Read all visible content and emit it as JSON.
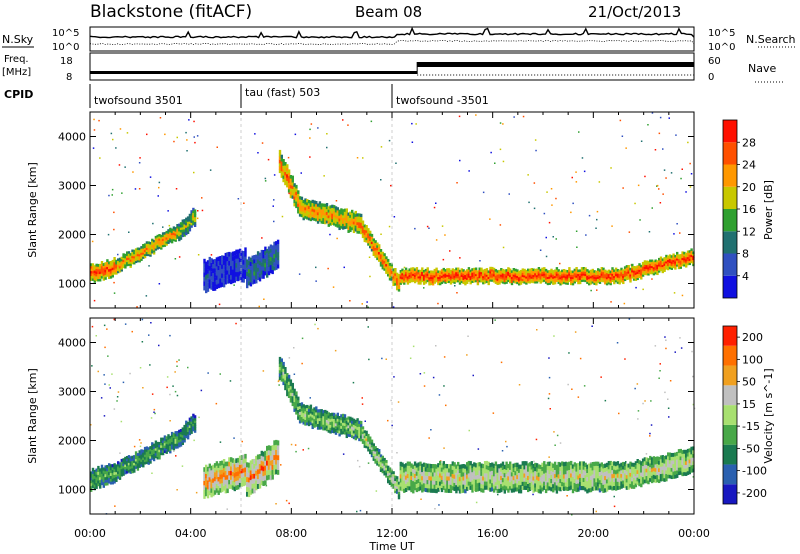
{
  "header": {
    "title": "Blackstone (fitACF)",
    "beam": "Beam 08",
    "date": "21/Oct/2013"
  },
  "top_panel": {
    "left_label": "N.Sky",
    "right_label": "N.Search",
    "left_ticks": [
      "10^5",
      "10^0"
    ],
    "right_ticks": [
      "10^5",
      "10^0"
    ]
  },
  "freq_panel": {
    "left_label_1": "Freq.",
    "left_label_2": "[MHz]",
    "right_label": "Nave",
    "left_ticks": [
      "18",
      "8"
    ],
    "right_ticks": [
      "60",
      "0"
    ],
    "cpid_label": "CPID"
  },
  "cpid_segments": [
    {
      "name": "twofsound 3501",
      "start": 0.0,
      "end": 6.0
    },
    {
      "name": "tau (fast) 503",
      "start": 6.0,
      "end": 12.0
    },
    {
      "name": "twofsound -3501",
      "start": 12.0,
      "end": 24.0
    }
  ],
  "chart_data": [
    {
      "type": "heatmap",
      "title": "",
      "xlabel": "Time UT",
      "ylabel": "Slant Range [km]",
      "xlim": [
        0,
        24
      ],
      "ylim": [
        500,
        4500
      ],
      "x_ticks": [
        "00:00",
        "04:00",
        "08:00",
        "12:00",
        "16:00",
        "20:00",
        "00:00"
      ],
      "y_ticks": [
        "1000",
        "2000",
        "3000",
        "4000"
      ],
      "colorbar": {
        "label": "Power [dB]",
        "ticks": [
          "4",
          "8",
          "12",
          "16",
          "20",
          "24",
          "28"
        ],
        "colors": [
          "#1010e0",
          "#3050c0",
          "#207070",
          "#30a030",
          "#c8c800",
          "#ff9800",
          "#ff5000",
          "#ff1000"
        ]
      },
      "bands": [
        {
          "t0": 0.0,
          "t1": 1.0,
          "r0": 1200,
          "r1": 1350,
          "thick": 300,
          "level": 0.9
        },
        {
          "t0": 1.0,
          "t1": 3.5,
          "r0": 1350,
          "r1": 2050,
          "thick": 250,
          "level": 0.75
        },
        {
          "t0": 3.5,
          "t1": 4.2,
          "r0": 2050,
          "r1": 2400,
          "thick": 300,
          "level": 0.55
        },
        {
          "t0": 4.5,
          "t1": 6.2,
          "r0": 1150,
          "r1": 1400,
          "thick": 550,
          "level": 0.15
        },
        {
          "t0": 6.2,
          "t1": 7.5,
          "r0": 1200,
          "r1": 1600,
          "thick": 500,
          "level": 0.3
        },
        {
          "t0": 7.5,
          "t1": 8.3,
          "r0": 3500,
          "r1": 2600,
          "thick": 400,
          "level": 0.8
        },
        {
          "t0": 8.3,
          "t1": 10.8,
          "r0": 2550,
          "r1": 2200,
          "thick": 350,
          "level": 0.75
        },
        {
          "t0": 10.8,
          "t1": 12.3,
          "r0": 2100,
          "r1": 950,
          "thick": 300,
          "level": 0.85
        },
        {
          "t0": 12.3,
          "t1": 21.0,
          "r0": 1150,
          "r1": 1150,
          "thick": 250,
          "level": 0.92
        },
        {
          "t0": 21.0,
          "t1": 24.0,
          "r0": 1150,
          "r1": 1550,
          "thick": 250,
          "level": 0.9
        }
      ]
    },
    {
      "type": "heatmap",
      "title": "",
      "xlabel": "Time UT",
      "ylabel": "Slant Range [km]",
      "xlim": [
        0,
        24
      ],
      "ylim": [
        500,
        4500
      ],
      "x_ticks": [
        "00:00",
        "04:00",
        "08:00",
        "12:00",
        "16:00",
        "20:00",
        "00:00"
      ],
      "y_ticks": [
        "1000",
        "2000",
        "3000",
        "4000"
      ],
      "colorbar": {
        "label": "Velocity [m s^-1]",
        "ticks": [
          "200",
          "100",
          "50",
          "15",
          "-15",
          "-50",
          "-100",
          "-200"
        ],
        "colors": [
          "#1818c0",
          "#2a60b0",
          "#1a7a50",
          "#48a848",
          "#a8e070",
          "#c0c0c0",
          "#f0a020",
          "#ff7000",
          "#ff2000"
        ]
      },
      "bands": [
        {
          "t0": 0.0,
          "t1": 1.0,
          "r0": 1200,
          "r1": 1350,
          "thick": 350,
          "level": 0.4
        },
        {
          "t0": 1.0,
          "t1": 3.5,
          "r0": 1350,
          "r1": 2050,
          "thick": 300,
          "level": 0.4
        },
        {
          "t0": 3.5,
          "t1": 4.2,
          "r0": 2050,
          "r1": 2400,
          "thick": 300,
          "level": 0.35
        },
        {
          "t0": 4.5,
          "t1": 6.2,
          "r0": 1150,
          "r1": 1400,
          "thick": 550,
          "level": 0.8
        },
        {
          "t0": 6.2,
          "t1": 7.5,
          "r0": 1200,
          "r1": 1700,
          "thick": 600,
          "level": 0.8
        },
        {
          "t0": 7.5,
          "t1": 8.3,
          "r0": 3500,
          "r1": 2600,
          "thick": 400,
          "level": 0.48
        },
        {
          "t0": 8.3,
          "t1": 10.8,
          "r0": 2550,
          "r1": 2200,
          "thick": 350,
          "level": 0.48
        },
        {
          "t0": 10.8,
          "t1": 12.3,
          "r0": 2100,
          "r1": 950,
          "thick": 300,
          "level": 0.55
        },
        {
          "t0": 12.3,
          "t1": 21.0,
          "r0": 1250,
          "r1": 1250,
          "thick": 500,
          "level": 0.62
        },
        {
          "t0": 21.0,
          "t1": 24.0,
          "r0": 1250,
          "r1": 1600,
          "thick": 450,
          "level": 0.62
        }
      ]
    }
  ]
}
